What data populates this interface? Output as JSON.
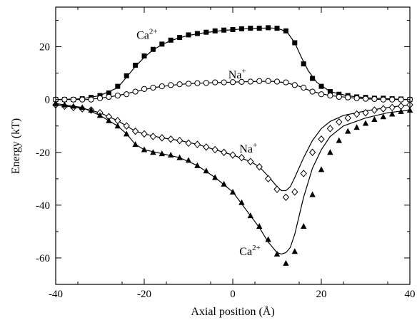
{
  "chart_data": {
    "type": "scatter",
    "title": "",
    "xlabel": "Axial position (Å)",
    "ylabel": "Energy (kT)",
    "xlim": [
      -40,
      40
    ],
    "ylim": [
      -70,
      35
    ],
    "xticks": [
      -40,
      -20,
      0,
      20,
      40
    ],
    "yticks": [
      20,
      0,
      -20,
      -40,
      -60
    ],
    "grid": false,
    "legend": "none",
    "series": [
      {
        "marker": "filled-square",
        "color": "#000000",
        "points": [
          [
            -40,
            0
          ],
          [
            -38,
            0
          ],
          [
            -36,
            0
          ],
          [
            -34,
            0.3
          ],
          [
            -32,
            0.8
          ],
          [
            -30,
            1.5
          ],
          [
            -28,
            2.5
          ],
          [
            -26,
            5
          ],
          [
            -24,
            9
          ],
          [
            -22,
            13
          ],
          [
            -20,
            16.5
          ],
          [
            -18,
            19
          ],
          [
            -16,
            21
          ],
          [
            -14,
            22.5
          ],
          [
            -12,
            23.5
          ],
          [
            -10,
            24.5
          ],
          [
            -8,
            25
          ],
          [
            -6,
            25.5
          ],
          [
            -4,
            26
          ],
          [
            -2,
            26.3
          ],
          [
            0,
            26.5
          ],
          [
            2,
            26.8
          ],
          [
            4,
            27
          ],
          [
            6,
            27
          ],
          [
            8,
            27.2
          ],
          [
            10,
            27
          ],
          [
            12,
            26
          ],
          [
            14,
            21.5
          ],
          [
            16,
            13.5
          ],
          [
            18,
            8
          ],
          [
            20,
            5
          ],
          [
            22,
            3
          ],
          [
            24,
            2
          ],
          [
            26,
            1.5
          ],
          [
            28,
            1
          ],
          [
            30,
            0.8
          ],
          [
            32,
            0.5
          ],
          [
            34,
            0.5
          ],
          [
            36,
            0.3
          ],
          [
            38,
            0.2
          ],
          [
            40,
            0
          ]
        ]
      },
      {
        "marker": "open-circle",
        "color": "#000000",
        "points": [
          [
            -40,
            0
          ],
          [
            -38,
            0
          ],
          [
            -36,
            0
          ],
          [
            -34,
            0
          ],
          [
            -32,
            0
          ],
          [
            -30,
            0.5
          ],
          [
            -28,
            1
          ],
          [
            -26,
            1.5
          ],
          [
            -24,
            2
          ],
          [
            -22,
            3
          ],
          [
            -20,
            4
          ],
          [
            -18,
            4.5
          ],
          [
            -16,
            5
          ],
          [
            -14,
            5.5
          ],
          [
            -12,
            5.8
          ],
          [
            -10,
            6
          ],
          [
            -8,
            6.2
          ],
          [
            -6,
            6.3
          ],
          [
            -4,
            6.5
          ],
          [
            -2,
            6.5
          ],
          [
            0,
            6.6
          ],
          [
            2,
            6.7
          ],
          [
            4,
            6.8
          ],
          [
            6,
            7
          ],
          [
            8,
            7
          ],
          [
            10,
            6.8
          ],
          [
            12,
            6.5
          ],
          [
            14,
            5.5
          ],
          [
            16,
            4.5
          ],
          [
            18,
            3
          ],
          [
            20,
            2
          ],
          [
            22,
            1.5
          ],
          [
            24,
            1
          ],
          [
            26,
            0.8
          ],
          [
            28,
            0.5
          ],
          [
            30,
            0.3
          ],
          [
            32,
            0.2
          ],
          [
            34,
            0
          ],
          [
            36,
            0
          ],
          [
            38,
            0
          ],
          [
            40,
            0
          ]
        ]
      },
      {
        "marker": "open-diamond",
        "color": "#000000",
        "points": [
          [
            -40,
            -2
          ],
          [
            -38,
            -2.5
          ],
          [
            -36,
            -3
          ],
          [
            -34,
            -3.5
          ],
          [
            -32,
            -4
          ],
          [
            -30,
            -5
          ],
          [
            -28,
            -6.5
          ],
          [
            -26,
            -8
          ],
          [
            -24,
            -10
          ],
          [
            -22,
            -12
          ],
          [
            -20,
            -13
          ],
          [
            -18,
            -14
          ],
          [
            -16,
            -14.5
          ],
          [
            -14,
            -15
          ],
          [
            -12,
            -15.5
          ],
          [
            -10,
            -16.5
          ],
          [
            -8,
            -17
          ],
          [
            -6,
            -18
          ],
          [
            -4,
            -19
          ],
          [
            -2,
            -20
          ],
          [
            0,
            -21
          ],
          [
            2,
            -22
          ],
          [
            4,
            -23.5
          ],
          [
            6,
            -25.5
          ],
          [
            8,
            -30
          ],
          [
            10,
            -34
          ],
          [
            12,
            -37
          ],
          [
            14,
            -35
          ],
          [
            16,
            -28
          ],
          [
            18,
            -20
          ],
          [
            20,
            -15
          ],
          [
            22,
            -11
          ],
          [
            24,
            -8.5
          ],
          [
            26,
            -7
          ],
          [
            28,
            -5.5
          ],
          [
            30,
            -5
          ],
          [
            32,
            -4
          ],
          [
            34,
            -3.5
          ],
          [
            36,
            -3
          ],
          [
            38,
            -2.5
          ],
          [
            40,
            -2
          ]
        ]
      },
      {
        "marker": "filled-triangle",
        "color": "#000000",
        "points": [
          [
            -40,
            -1.5
          ],
          [
            -38,
            -2
          ],
          [
            -36,
            -2.5
          ],
          [
            -34,
            -3
          ],
          [
            -32,
            -4
          ],
          [
            -30,
            -6
          ],
          [
            -28,
            -8
          ],
          [
            -26,
            -10
          ],
          [
            -24,
            -13
          ],
          [
            -22,
            -17
          ],
          [
            -20,
            -19
          ],
          [
            -18,
            -20
          ],
          [
            -16,
            -20.5
          ],
          [
            -14,
            -21
          ],
          [
            -12,
            -22
          ],
          [
            -10,
            -23
          ],
          [
            -8,
            -25
          ],
          [
            -6,
            -27
          ],
          [
            -4,
            -29.5
          ],
          [
            -2,
            -32
          ],
          [
            0,
            -35
          ],
          [
            2,
            -39
          ],
          [
            4,
            -44
          ],
          [
            6,
            -48
          ],
          [
            8,
            -53
          ],
          [
            10,
            -58.5
          ],
          [
            12,
            -62
          ],
          [
            14,
            -57.5
          ],
          [
            16,
            -48
          ],
          [
            18,
            -36
          ],
          [
            20,
            -26.5
          ],
          [
            22,
            -20
          ],
          [
            24,
            -15.5
          ],
          [
            26,
            -12
          ],
          [
            28,
            -10.5
          ],
          [
            30,
            -9
          ],
          [
            32,
            -7.5
          ],
          [
            34,
            -6.5
          ],
          [
            36,
            -5.5
          ],
          [
            38,
            -4.5
          ],
          [
            40,
            -4
          ]
        ]
      }
    ],
    "curves": [
      {
        "style": "solid-line",
        "color": "#000000",
        "points": [
          [
            -40,
            0
          ],
          [
            -34,
            0.3
          ],
          [
            -30,
            1.5
          ],
          [
            -26,
            4.5
          ],
          [
            -24,
            8.5
          ],
          [
            -22,
            12.5
          ],
          [
            -20,
            16
          ],
          [
            -18,
            18.8
          ],
          [
            -16,
            20.8
          ],
          [
            -14,
            22.3
          ],
          [
            -12,
            23.4
          ],
          [
            -10,
            24.3
          ],
          [
            -6,
            25.4
          ],
          [
            -2,
            26.2
          ],
          [
            2,
            26.7
          ],
          [
            6,
            27
          ],
          [
            9,
            27.1
          ],
          [
            11,
            26.5
          ],
          [
            12.5,
            25
          ],
          [
            14,
            21.5
          ],
          [
            15.5,
            16
          ],
          [
            17,
            11
          ],
          [
            19,
            6.5
          ],
          [
            22,
            3
          ],
          [
            26,
            1.4
          ],
          [
            30,
            0.7
          ],
          [
            35,
            0.3
          ],
          [
            40,
            0
          ]
        ]
      },
      {
        "style": "solid-line",
        "color": "#000000",
        "points": [
          [
            -40,
            0
          ],
          [
            -33,
            0
          ],
          [
            -30,
            0.5
          ],
          [
            -26,
            1.5
          ],
          [
            -22,
            3
          ],
          [
            -18,
            4.5
          ],
          [
            -14,
            5.4
          ],
          [
            -10,
            6
          ],
          [
            -6,
            6.3
          ],
          [
            -2,
            6.5
          ],
          [
            2,
            6.7
          ],
          [
            6,
            6.9
          ],
          [
            9,
            6.9
          ],
          [
            12,
            6.4
          ],
          [
            15,
            5
          ],
          [
            18,
            3
          ],
          [
            22,
            1.5
          ],
          [
            26,
            0.8
          ],
          [
            30,
            0.3
          ],
          [
            34,
            0
          ],
          [
            40,
            0
          ]
        ]
      },
      {
        "style": "solid-line",
        "color": "#000000",
        "points": [
          [
            -40,
            -2
          ],
          [
            -34,
            -3.3
          ],
          [
            -30,
            -5
          ],
          [
            -26,
            -8
          ],
          [
            -22,
            -12
          ],
          [
            -20,
            -13
          ],
          [
            -16,
            -14.5
          ],
          [
            -12,
            -15.5
          ],
          [
            -8,
            -17
          ],
          [
            -4,
            -19
          ],
          [
            0,
            -21
          ],
          [
            4,
            -23.5
          ],
          [
            6,
            -25.5
          ],
          [
            8,
            -29
          ],
          [
            10,
            -33
          ],
          [
            11,
            -34.5
          ],
          [
            12,
            -34.5
          ],
          [
            13,
            -33
          ],
          [
            14,
            -29.5
          ],
          [
            16,
            -22
          ],
          [
            18,
            -15.5
          ],
          [
            20,
            -11
          ],
          [
            22,
            -8.3
          ],
          [
            25,
            -6
          ],
          [
            30,
            -4.3
          ],
          [
            35,
            -3
          ],
          [
            40,
            -2
          ]
        ]
      },
      {
        "style": "solid-line",
        "color": "#000000",
        "points": [
          [
            -40,
            -1.5
          ],
          [
            -34,
            -3
          ],
          [
            -30,
            -6
          ],
          [
            -26,
            -10
          ],
          [
            -24,
            -13
          ],
          [
            -22,
            -17
          ],
          [
            -20,
            -19
          ],
          [
            -16,
            -20.5
          ],
          [
            -12,
            -22
          ],
          [
            -8,
            -25
          ],
          [
            -4,
            -29.5
          ],
          [
            0,
            -35
          ],
          [
            4,
            -44
          ],
          [
            6,
            -48.5
          ],
          [
            8,
            -54
          ],
          [
            10,
            -58
          ],
          [
            11,
            -58.5
          ],
          [
            12,
            -58
          ],
          [
            13,
            -56
          ],
          [
            14,
            -51
          ],
          [
            15,
            -44
          ],
          [
            16,
            -37
          ],
          [
            18,
            -26
          ],
          [
            20,
            -19
          ],
          [
            22,
            -14
          ],
          [
            25,
            -10
          ],
          [
            30,
            -7
          ],
          [
            35,
            -5
          ],
          [
            40,
            -4
          ]
        ]
      }
    ],
    "annotations": [
      {
        "base": "Ca",
        "sup": "2+",
        "x": -17,
        "y": 23,
        "anchor": "end"
      },
      {
        "base": "Na",
        "sup": "+",
        "x": -1,
        "y": 8,
        "anchor": "start"
      },
      {
        "base": "Na",
        "sup": "+",
        "x": 1.5,
        "y": -20,
        "anchor": "start"
      },
      {
        "base": "Ca",
        "sup": "2+",
        "x": 1.5,
        "y": -59,
        "anchor": "start"
      }
    ]
  }
}
